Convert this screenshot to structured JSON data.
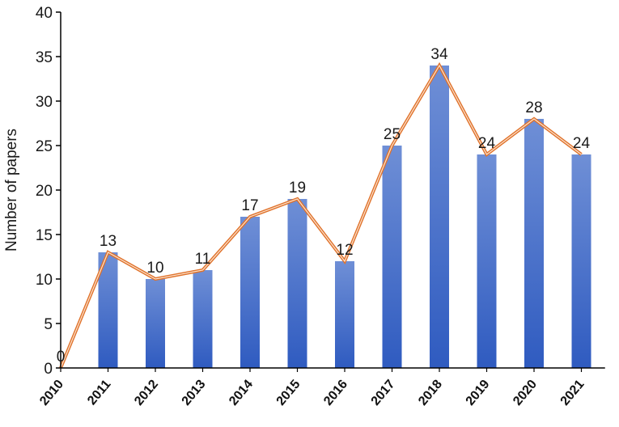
{
  "chart_data": {
    "type": "bar",
    "title": "",
    "xlabel": "",
    "ylabel": "Number of papers",
    "ylim": [
      0,
      40
    ],
    "yticks": [
      0,
      5,
      10,
      15,
      20,
      25,
      30,
      35,
      40
    ],
    "categories": [
      "2010",
      "2011",
      "2012",
      "2013",
      "2014",
      "2015",
      "2016",
      "2017",
      "2018",
      "2019",
      "2020",
      "2021"
    ],
    "values": [
      0,
      13,
      10,
      11,
      17,
      19,
      12,
      25,
      34,
      24,
      28,
      24
    ],
    "overlay_line": true,
    "grid": false,
    "colors": {
      "bar_top": "#6f8fd6",
      "bar_bottom": "#2f5bc0",
      "line_outer": "#e0722b",
      "line_inner": "#fbe3cf",
      "axis": "#000000"
    }
  }
}
